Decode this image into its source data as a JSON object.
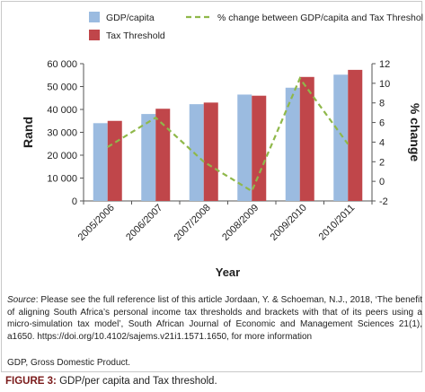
{
  "chart_data": {
    "type": "bar+line",
    "categories": [
      "2005/2006",
      "2006/2007",
      "2007/2008",
      "2008/2009",
      "2009/2010",
      "2010/2011"
    ],
    "series": [
      {
        "name": "GDP/capita",
        "kind": "bar",
        "axis": "left",
        "color": "#9bbbe0",
        "values": [
          34000,
          38000,
          42300,
          46500,
          49500,
          55200
        ]
      },
      {
        "name": "Tax Threshold",
        "kind": "bar",
        "axis": "left",
        "color": "#c0464a",
        "values": [
          35000,
          40300,
          43000,
          46000,
          54200,
          57300
        ]
      },
      {
        "name": "% change between GDP/capita and Tax Threshold",
        "kind": "line",
        "axis": "right",
        "color": "#8fb84a",
        "dashed": true,
        "values": [
          3.5,
          6.5,
          2.0,
          -1.0,
          10.5,
          3.8
        ]
      }
    ],
    "xlabel": "Year",
    "ylabel": "Rand",
    "y2label": "% change",
    "ylim": [
      0,
      60000
    ],
    "y2lim": [
      -2,
      12
    ],
    "yticks": [
      "0",
      "10 000",
      "20 000",
      "30 000",
      "40 000",
      "50 000",
      "60 000"
    ],
    "y2ticks": [
      "-2",
      "0",
      "2",
      "4",
      "6",
      "8",
      "10",
      "12"
    ],
    "grid": false,
    "legend_position": "top"
  },
  "notes": {
    "source_label": "Source",
    "source_text": ": Please see the full reference list of this article Jordaan, Y. & Schoeman, N.J., 2018, ‘The benefit of aligning South Africa’s personal income tax thresholds and brackets with that of its peers using a micro-simulation tax model’, South African Journal of Economic and Management Sciences 21(1), a1650. https://doi.org/10.4102/sajems.v21i1.1571.1650, for more information",
    "abbreviation": "GDP, Gross Domestic Product."
  },
  "caption": {
    "label": "FIGURE 3:",
    "text": " GDP/per capita and Tax threshold."
  }
}
